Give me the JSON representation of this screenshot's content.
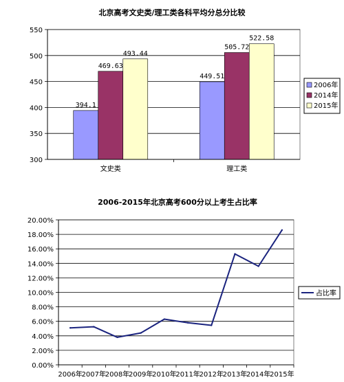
{
  "chart_data": [
    {
      "type": "bar",
      "title": "北京高考文史类/理工类各科平均分总分比较",
      "categories": [
        "文史类",
        "理工类"
      ],
      "series": [
        {
          "name": "2006年",
          "values": [
            394.1,
            449.51
          ],
          "labels": [
            "394.1",
            "449.51"
          ],
          "color": "#9999ff"
        },
        {
          "name": "2014年",
          "values": [
            469.63,
            505.72
          ],
          "labels": [
            "469.63",
            "505.72"
          ],
          "color": "#993366"
        },
        {
          "name": "2015年",
          "values": [
            493.44,
            522.58
          ],
          "labels": [
            "493.44",
            "522.58"
          ],
          "color": "#ffffcc"
        }
      ],
      "ylim": [
        300,
        550
      ],
      "yticks": [
        "300",
        "350",
        "400",
        "450",
        "500",
        "550"
      ],
      "grid": true,
      "legend": "right"
    },
    {
      "type": "line",
      "title": "2006-2015年北京高考600分以上考生占比率",
      "x": [
        "2006年",
        "2007年",
        "2008年",
        "2009年",
        "2010年",
        "2011年",
        "2012年",
        "2013年",
        "2014年",
        "2015年"
      ],
      "series": [
        {
          "name": "占比率",
          "values": [
            5.1,
            5.25,
            3.8,
            4.4,
            6.3,
            5.8,
            5.45,
            15.3,
            13.6,
            18.6
          ],
          "color": "#1a237e"
        }
      ],
      "ylim": [
        0,
        20
      ],
      "yticks": [
        "0.00%",
        "2.00%",
        "4.00%",
        "6.00%",
        "8.00%",
        "10.00%",
        "12.00%",
        "14.00%",
        "16.00%",
        "18.00%",
        "20.00%"
      ],
      "grid": true,
      "legend": "right"
    }
  ]
}
